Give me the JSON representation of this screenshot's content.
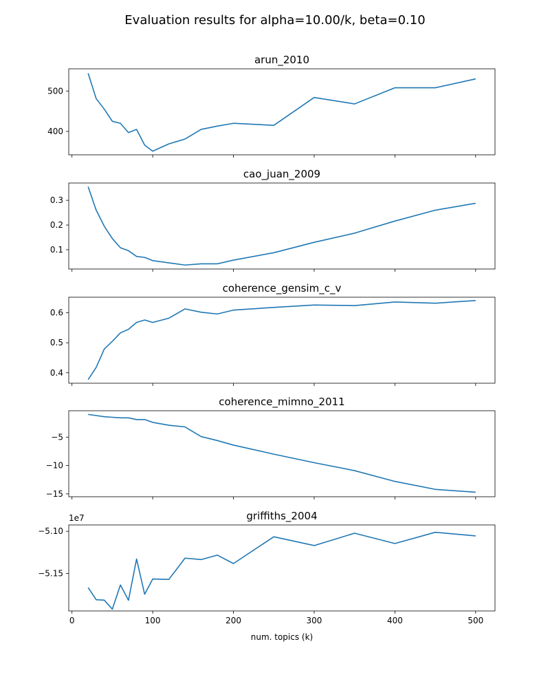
{
  "figure": {
    "suptitle": "Evaluation results for alpha=10.00/k, beta=0.10",
    "xlabel": "num. topics (k)",
    "line_color": "#1f77b4"
  },
  "chart_data": [
    {
      "type": "line",
      "title": "arun_2010",
      "xlim": [
        -4,
        524
      ],
      "ylim": [
        342,
        555
      ],
      "yticks": [
        400,
        500
      ],
      "ytick_labels": [
        "400",
        "500"
      ],
      "xticks": [
        0,
        100,
        200,
        300,
        400,
        500
      ],
      "show_xtick_labels": false,
      "x": [
        20,
        30,
        40,
        50,
        60,
        70,
        80,
        90,
        100,
        120,
        140,
        160,
        180,
        200,
        250,
        300,
        350,
        400,
        450,
        500
      ],
      "y": [
        544,
        481,
        455,
        425,
        420,
        397,
        405,
        366,
        351,
        369,
        381,
        405,
        413,
        420,
        415,
        484,
        468,
        508,
        508,
        530
      ]
    },
    {
      "type": "line",
      "title": "cao_juan_2009",
      "xlim": [
        -4,
        524
      ],
      "ylim": [
        0.022,
        0.37
      ],
      "yticks": [
        0.1,
        0.2,
        0.3
      ],
      "ytick_labels": [
        "0.1",
        "0.2",
        "0.3"
      ],
      "xticks": [
        0,
        100,
        200,
        300,
        400,
        500
      ],
      "show_xtick_labels": false,
      "x": [
        20,
        30,
        40,
        50,
        60,
        70,
        80,
        90,
        100,
        120,
        140,
        160,
        180,
        200,
        250,
        300,
        350,
        400,
        450,
        500
      ],
      "y": [
        0.355,
        0.26,
        0.195,
        0.145,
        0.108,
        0.096,
        0.073,
        0.069,
        0.056,
        0.047,
        0.038,
        0.043,
        0.043,
        0.058,
        0.088,
        0.13,
        0.167,
        0.216,
        0.26,
        0.288
      ]
    },
    {
      "type": "line",
      "title": "coherence_gensim_c_v",
      "xlim": [
        -4,
        524
      ],
      "ylim": [
        0.365,
        0.652
      ],
      "yticks": [
        0.4,
        0.5,
        0.6
      ],
      "ytick_labels": [
        "0.4",
        "0.5",
        "0.6"
      ],
      "xticks": [
        0,
        100,
        200,
        300,
        400,
        500
      ],
      "show_xtick_labels": false,
      "x": [
        20,
        30,
        40,
        50,
        60,
        70,
        80,
        90,
        100,
        120,
        140,
        160,
        180,
        200,
        250,
        300,
        350,
        400,
        450,
        500
      ],
      "y": [
        0.377,
        0.418,
        0.479,
        0.505,
        0.533,
        0.545,
        0.568,
        0.576,
        0.568,
        0.582,
        0.613,
        0.602,
        0.596,
        0.609,
        0.618,
        0.626,
        0.624,
        0.636,
        0.632,
        0.641
      ]
    },
    {
      "type": "line",
      "title": "coherence_mimno_2011",
      "xlim": [
        -4,
        524
      ],
      "ylim": [
        -15.5,
        -0.35
      ],
      "yticks": [
        -15,
        -10,
        -5
      ],
      "ytick_labels": [
        "−15",
        "−10",
        "−5"
      ],
      "xticks": [
        0,
        100,
        200,
        300,
        400,
        500
      ],
      "show_xtick_labels": false,
      "x": [
        20,
        30,
        40,
        50,
        60,
        70,
        80,
        90,
        100,
        120,
        140,
        160,
        180,
        200,
        250,
        300,
        350,
        400,
        450,
        500
      ],
      "y": [
        -1.0,
        -1.2,
        -1.4,
        -1.5,
        -1.6,
        -1.6,
        -1.9,
        -1.9,
        -2.4,
        -2.9,
        -3.2,
        -4.9,
        -5.6,
        -6.4,
        -8.0,
        -9.5,
        -10.9,
        -12.8,
        -14.2,
        -14.7
      ]
    },
    {
      "type": "line",
      "title": "griffiths_2004",
      "offset_label": "1e7",
      "xlim": [
        -4,
        524
      ],
      "ylim": [
        -5.1943,
        -5.0925
      ],
      "yticks": [
        -5.15,
        -5.1
      ],
      "ytick_labels": [
        "−5.15",
        "−5.10"
      ],
      "xticks": [
        0,
        100,
        200,
        300,
        400,
        500
      ],
      "xtick_labels": [
        "0",
        "100",
        "200",
        "300",
        "400",
        "500"
      ],
      "show_xtick_labels": true,
      "x": [
        20,
        30,
        40,
        50,
        60,
        70,
        80,
        90,
        100,
        120,
        140,
        160,
        180,
        200,
        250,
        300,
        350,
        400,
        450,
        500
      ],
      "y": [
        -5.1666,
        -5.181,
        -5.1815,
        -5.1922,
        -5.1636,
        -5.1817,
        -5.1328,
        -5.1745,
        -5.1565,
        -5.157,
        -5.1318,
        -5.1335,
        -5.1282,
        -5.1382,
        -5.1065,
        -5.1169,
        -5.1023,
        -5.1145,
        -5.1012,
        -5.1055
      ]
    }
  ]
}
